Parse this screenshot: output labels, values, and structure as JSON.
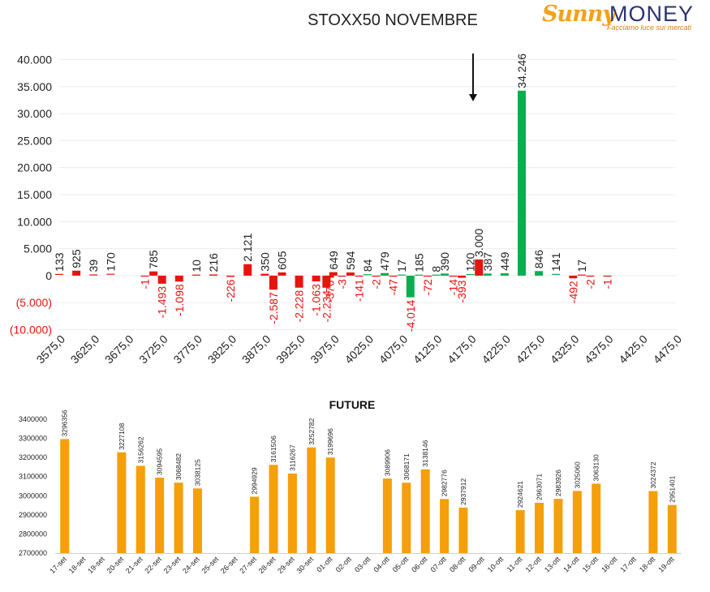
{
  "title": "STOXX50 NOVEMBRE",
  "logo": {
    "brand1": "Sunny",
    "brand2": "MONEY",
    "tagline": "Facciamo luce sui mercati"
  },
  "colors": {
    "positive": "#0aae4f",
    "negative": "#e8130e",
    "future": "#f59f0b"
  },
  "chart_data": [
    {
      "type": "bar",
      "title": "STOXX50 NOVEMBRE",
      "y_tick_labels": [
        "40.000",
        "35.000",
        "30.000",
        "25.000",
        "20.000",
        "15.000",
        "10.000",
        "5.000",
        "0",
        "(5.000)",
        "(10.000)"
      ],
      "ylim": [
        -10000,
        40000
      ],
      "x_tick_labels": [
        "3575,0",
        "3625,0",
        "3675,0",
        "3725,0",
        "3775,0",
        "3825,0",
        "3875,0",
        "3925,0",
        "3975,0",
        "4025,0",
        "4075,0",
        "4125,0",
        "4175,0",
        "4225,0",
        "4275,0",
        "4325,0",
        "4375,0",
        "4425,0",
        "4475,0"
      ],
      "marker": "arrow at 4175,0",
      "points": [
        {
          "x": 3575,
          "v": 133,
          "label": "133"
        },
        {
          "x": 3600,
          "v": 925,
          "label": "925"
        },
        {
          "x": 3625,
          "v": 39,
          "label": "39"
        },
        {
          "x": 3650,
          "v": 170,
          "label": "170"
        },
        {
          "x": 3700,
          "v": -1,
          "label": "-1"
        },
        {
          "x": 3712.5,
          "v": 785,
          "label": "785"
        },
        {
          "x": 3725,
          "v": -1493,
          "label": "-1.493"
        },
        {
          "x": 3750,
          "v": -1098,
          "label": "-1.098"
        },
        {
          "x": 3775,
          "v": 10,
          "label": "10"
        },
        {
          "x": 3800,
          "v": 216,
          "label": "216"
        },
        {
          "x": 3825,
          "v": -226,
          "label": "-226"
        },
        {
          "x": 3850,
          "v": 2121,
          "label": "2.121"
        },
        {
          "x": 3875,
          "v": 350,
          "label": "350"
        },
        {
          "x": 3887.5,
          "v": -2587,
          "label": "-2.587"
        },
        {
          "x": 3900,
          "v": 605,
          "label": "605"
        },
        {
          "x": 3925,
          "v": -2228,
          "label": "-2.228"
        },
        {
          "x": 3950,
          "v": -1063,
          "label": "-1.063"
        },
        {
          "x": 3965,
          "v": -2234,
          "label": "-2.234"
        },
        {
          "x": 3970,
          "v": -376,
          "label": "-376"
        },
        {
          "x": 3975,
          "v": 649,
          "label": "649"
        },
        {
          "x": 3987.5,
          "v": -3,
          "label": "-3"
        },
        {
          "x": 4000,
          "v": 594,
          "label": "594"
        },
        {
          "x": 4012.5,
          "v": -141,
          "label": "-141"
        },
        {
          "x": 4025,
          "v": 84,
          "label": "84"
        },
        {
          "x": 4037.5,
          "v": -2,
          "label": "-2"
        },
        {
          "x": 4050,
          "v": 479,
          "label": "479"
        },
        {
          "x": 4062.5,
          "v": -47,
          "label": "-47"
        },
        {
          "x": 4075,
          "v": 17,
          "label": "17"
        },
        {
          "x": 4087.5,
          "v": -4014,
          "label": "-4.014"
        },
        {
          "x": 4100,
          "v": 185,
          "label": "185"
        },
        {
          "x": 4112.5,
          "v": -72,
          "label": "-72"
        },
        {
          "x": 4125,
          "v": 8,
          "label": "8"
        },
        {
          "x": 4137.5,
          "v": 390,
          "label": "390"
        },
        {
          "x": 4150,
          "v": -14,
          "label": "-14"
        },
        {
          "x": 4162.5,
          "v": -393,
          "label": "-393"
        },
        {
          "x": 4175,
          "v": 120,
          "label": "120"
        },
        {
          "x": 4187.5,
          "v": 3000,
          "label": "3.000"
        },
        {
          "x": 4200,
          "v": 387,
          "label": "387"
        },
        {
          "x": 4225,
          "v": 449,
          "label": "449"
        },
        {
          "x": 4250,
          "v": 34246,
          "label": "34.246"
        },
        {
          "x": 4275,
          "v": 846,
          "label": "846"
        },
        {
          "x": 4300,
          "v": 141,
          "label": "141"
        },
        {
          "x": 4325,
          "v": -492,
          "label": "-492"
        },
        {
          "x": 4337.5,
          "v": 17,
          "label": "17"
        },
        {
          "x": 4350,
          "v": -2,
          "label": "-2"
        },
        {
          "x": 4375,
          "v": -1,
          "label": "-1"
        }
      ]
    },
    {
      "type": "bar",
      "title": "FUTURE",
      "y_tick_labels": [
        "3400000",
        "3300000",
        "3200000",
        "3100000",
        "3000000",
        "2900000",
        "2800000",
        "2700000"
      ],
      "ylim": [
        2700000,
        3400000
      ],
      "categories": [
        "17-set",
        "18-set",
        "19-set",
        "20-set",
        "21-set",
        "22-set",
        "23-set",
        "24-set",
        "25-set",
        "26-set",
        "27-set",
        "28-set",
        "29-set",
        "30-set",
        "01-ott",
        "02-ott",
        "03-ott",
        "04-ott",
        "05-ott",
        "06-ott",
        "07-ott",
        "08-ott",
        "09-ott",
        "10-ott",
        "11-ott",
        "12-ott",
        "13-ott",
        "14-ott",
        "15-ott",
        "16-ott",
        "17-ott",
        "18-ott",
        "19-ott"
      ],
      "values": [
        3296356,
        null,
        null,
        3227108,
        3156262,
        3094595,
        3068482,
        3038125,
        null,
        null,
        2994929,
        3161506,
        3116267,
        3252782,
        3199696,
        null,
        null,
        3089906,
        3068171,
        3138146,
        2982776,
        2937912,
        null,
        null,
        2924621,
        2963071,
        2983926,
        3025060,
        3063130,
        null,
        null,
        3024372,
        2951401
      ],
      "value_labels": [
        "3296356",
        "",
        "",
        "3227108",
        "3156262",
        "3094595",
        "3068482",
        "3038125",
        "",
        "",
        "2994929",
        "3161506",
        "3116267",
        "3252782",
        "3199696",
        "",
        "",
        "3089906",
        "3068171",
        "3138146",
        "2982776",
        "2937912",
        "",
        "",
        "2924621",
        "2963071",
        "2983926",
        "3025060",
        "3063130",
        "",
        "",
        "3024372",
        "2951401"
      ]
    }
  ]
}
